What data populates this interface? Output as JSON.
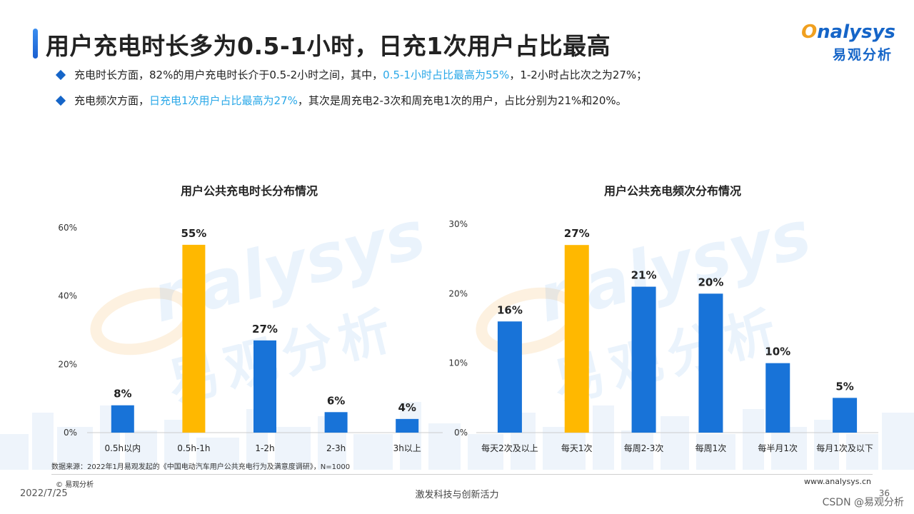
{
  "title": "用户充电时长多为0.5-1小时，日充1次用户占比最高",
  "logo": {
    "en_o": "O",
    "en_rest": "nalysys",
    "cn": "易观分析"
  },
  "watermark": {
    "en": "nalysys",
    "cn": "易观分析"
  },
  "bullets": [
    {
      "pre": "充电时长方面，82%的用户充电时长介于0.5-2小时之间，其中，",
      "highlight": "0.5-1小时占比最高为55%",
      "post": "，1-2小时占比次之为27%；"
    },
    {
      "pre": "充电频次方面，",
      "highlight": "日充电1次用户占比最高为27%",
      "post": "，其次是周充电2-3次和周充电1次的用户，占比分别为21%和20%。"
    }
  ],
  "colors": {
    "bar": "#1873d8",
    "highlight_bar": "#ffb800",
    "highlight_text": "#2aa8e8",
    "brand": "#1565c8",
    "axis": "#cccccc"
  },
  "chart_data": [
    {
      "type": "bar",
      "title": "用户公共充电时长分布情况",
      "categories": [
        "0.5h以内",
        "0.5h-1h",
        "1-2h",
        "2-3h",
        "3h以上"
      ],
      "values": [
        8,
        55,
        27,
        6,
        4
      ],
      "value_labels": [
        "8%",
        "55%",
        "27%",
        "6%",
        "4%"
      ],
      "highlight_index": 1,
      "ylim": [
        0,
        60
      ],
      "yticks": [
        0,
        20,
        40,
        60
      ],
      "ytick_labels": [
        "0%",
        "20%",
        "40%",
        "60%"
      ],
      "grid": false
    },
    {
      "type": "bar",
      "title": "用户公共充电频次分布情况",
      "categories": [
        "每天2次及以上",
        "每天1次",
        "每周2-3次",
        "每周1次",
        "每半月1次",
        "每月1次及以下"
      ],
      "values": [
        16,
        27,
        21,
        20,
        10,
        5
      ],
      "value_labels": [
        "16%",
        "27%",
        "21%",
        "20%",
        "10%",
        "5%"
      ],
      "highlight_index": 1,
      "ylim": [
        0,
        30
      ],
      "yticks": [
        0,
        10,
        20,
        30
      ],
      "ytick_labels": [
        "0%",
        "10%",
        "20%",
        "30%"
      ],
      "grid": false
    }
  ],
  "footer": {
    "source": "数据来源：2022年1月易观发起的《中国电动汽车用户公共充电行为及满意度调研》，N=1000",
    "copyright": "© 易观分析",
    "website": "www.analysys.cn",
    "date": "2022/7/25",
    "slogan": "激发科技与创新活力",
    "page": "36",
    "credit": "CSDN @易观分析"
  }
}
